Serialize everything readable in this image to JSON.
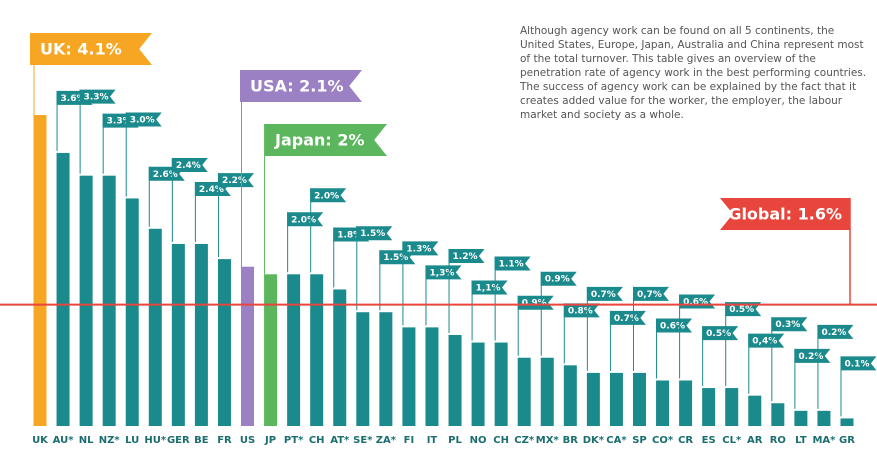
{
  "chart_data": {
    "type": "bar",
    "annotation": "Although agency work can be found on all 5 continents, the United States, Europe, Japan, Australia and China represent most of the total turnover. This table gives an overview of the penetration rate of agency work in the best performing countries. The success of agency work can be explained by the fact that it creates added value for the worker, the employer, the labour market and society as a whole.",
    "categories": [
      "UK",
      "AU*",
      "NL",
      "NZ*",
      "LU",
      "HU*",
      "GER",
      "BE",
      "FR",
      "US",
      "JP",
      "PT*",
      "CH",
      "AT*",
      "SE*",
      "ZA*",
      "FI",
      "IT",
      "PL",
      "NO",
      "CH",
      "CZ*",
      "MX*",
      "BR",
      "DK*",
      "CA*",
      "SP",
      "CO*",
      "CR",
      "ES",
      "CL*",
      "AR",
      "RO",
      "LT",
      "MA*",
      "GR"
    ],
    "values": [
      4.1,
      3.6,
      3.3,
      3.3,
      3.0,
      2.6,
      2.4,
      2.4,
      2.2,
      2.1,
      2,
      2.0,
      2.0,
      1.8,
      1.5,
      1.5,
      1.3,
      1.3,
      1.2,
      1.1,
      1.1,
      0.9,
      0.9,
      0.8,
      0.7,
      0.7,
      0.7,
      0.6,
      0.6,
      0.5,
      0.5,
      0.4,
      0.3,
      0.2,
      0.2,
      0.1
    ],
    "value_labels": [
      "UK: 4.1%",
      "3.6%",
      "3.3%",
      "3.3%",
      "3.0%",
      "2.6%",
      "2.4%",
      "2.4%",
      "2.2%",
      "USA: 2.1%",
      "Japan: 2%",
      "2.0%",
      "2.0%",
      "1.8%",
      "1.5%",
      "1.5%",
      "1.3%",
      "1,3%",
      "1.2%",
      "1,1%",
      "1.1%",
      "0.9%",
      "0.9%",
      "0.8%",
      "0.7%",
      "0.7%",
      "0,7%",
      "0.6%",
      "0.6%",
      "0.5%",
      "0.5%",
      "0,4%",
      "0.3%",
      "0.2%",
      "0.2%",
      "0.1%"
    ],
    "color": "#1b8a8c",
    "colors": [
      "#f6a623",
      "#1b8a8c",
      "#1b8a8c",
      "#1b8a8c",
      "#1b8a8c",
      "#1b8a8c",
      "#1b8a8c",
      "#1b8a8c",
      "#1b8a8c",
      "#9b80c3",
      "#5bb65e",
      "#1b8a8c",
      "#1b8a8c",
      "#1b8a8c",
      "#1b8a8c",
      "#1b8a8c",
      "#1b8a8c",
      "#1b8a8c",
      "#1b8a8c",
      "#1b8a8c",
      "#1b8a8c",
      "#1b8a8c",
      "#1b8a8c",
      "#1b8a8c",
      "#1b8a8c",
      "#1b8a8c",
      "#1b8a8c",
      "#1b8a8c",
      "#1b8a8c",
      "#1b8a8c",
      "#1b8a8c",
      "#1b8a8c",
      "#1b8a8c",
      "#1b8a8c",
      "#1b8a8c",
      "#1b8a8c"
    ],
    "ylim": [
      0,
      4.1
    ],
    "reference": {
      "value": 1.6,
      "label": "Global: 1.6%",
      "color": "#e8453c"
    }
  }
}
